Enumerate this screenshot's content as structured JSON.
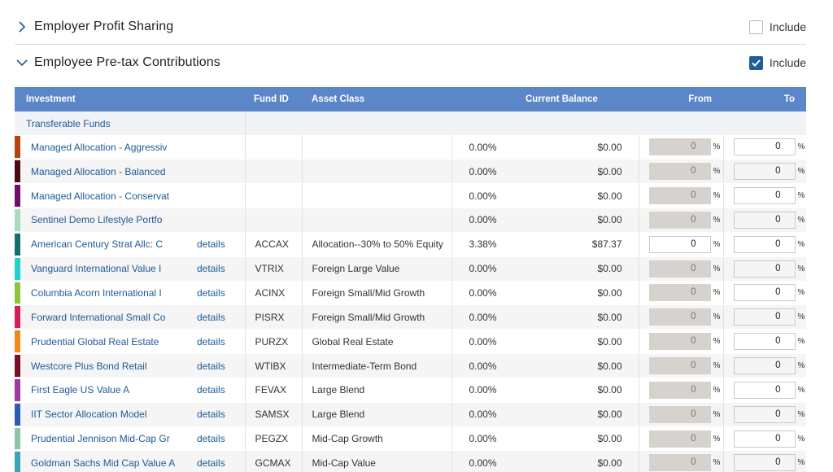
{
  "sections": [
    {
      "title": "Employer Profit Sharing",
      "include_label": "Include",
      "included": false,
      "expanded": false
    },
    {
      "title": "Employee Pre-tax Contributions",
      "include_label": "Include",
      "included": true,
      "expanded": true
    }
  ],
  "table": {
    "headers": {
      "investment": "Investment",
      "fund_id": "Fund ID",
      "asset_class": "Asset Class",
      "current_balance": "Current Balance",
      "from": "From",
      "to": "To"
    },
    "group_label": "Transferable Funds",
    "percent_symbol": "%",
    "rows": [
      {
        "name": "Managed Allocation - Aggressiv",
        "color": "#b8420e",
        "details": "",
        "fund_id": "",
        "asset_class": "",
        "pct": "0.00%",
        "balance": "$0.00",
        "from": "0",
        "to": "0",
        "from_enabled": false
      },
      {
        "name": "Managed Allocation - Balanced",
        "color": "#4a0d12",
        "details": "",
        "fund_id": "",
        "asset_class": "",
        "pct": "0.00%",
        "balance": "$0.00",
        "from": "0",
        "to": "0",
        "from_enabled": false
      },
      {
        "name": "Managed Allocation - Conservat",
        "color": "#6e0f6e",
        "details": "",
        "fund_id": "",
        "asset_class": "",
        "pct": "0.00%",
        "balance": "$0.00",
        "from": "0",
        "to": "0",
        "from_enabled": false
      },
      {
        "name": "Sentinel Demo Lifestyle Portfo",
        "color": "#a8dcc0",
        "details": "",
        "fund_id": "",
        "asset_class": "",
        "pct": "0.00%",
        "balance": "$0.00",
        "from": "0",
        "to": "0",
        "from_enabled": false
      },
      {
        "name": "American Century Strat Allc: C",
        "color": "#156e6e",
        "details": "details",
        "fund_id": "ACCAX",
        "asset_class": "Allocation--30% to 50% Equity",
        "pct": "3.38%",
        "balance": "$87.37",
        "from": "0",
        "to": "0",
        "from_enabled": true
      },
      {
        "name": "Vanguard International Value I",
        "color": "#22d0cc",
        "details": "details",
        "fund_id": "VTRIX",
        "asset_class": "Foreign Large Value",
        "pct": "0.00%",
        "balance": "$0.00",
        "from": "0",
        "to": "0",
        "from_enabled": false
      },
      {
        "name": "Columbia Acorn International I",
        "color": "#8cc43a",
        "details": "details",
        "fund_id": "ACINX",
        "asset_class": "Foreign Small/Mid Growth",
        "pct": "0.00%",
        "balance": "$0.00",
        "from": "0",
        "to": "0",
        "from_enabled": false
      },
      {
        "name": "Forward International Small Co",
        "color": "#d41e5a",
        "details": "details",
        "fund_id": "PISRX",
        "asset_class": "Foreign Small/Mid Growth",
        "pct": "0.00%",
        "balance": "$0.00",
        "from": "0",
        "to": "0",
        "from_enabled": false
      },
      {
        "name": "Prudential Global Real Estate",
        "color": "#f08a12",
        "details": "details",
        "fund_id": "PURZX",
        "asset_class": "Global Real Estate",
        "pct": "0.00%",
        "balance": "$0.00",
        "from": "0",
        "to": "0",
        "from_enabled": false
      },
      {
        "name": "Westcore Plus Bond Retail",
        "color": "#7a0e24",
        "details": "details",
        "fund_id": "WTIBX",
        "asset_class": "Intermediate-Term Bond",
        "pct": "0.00%",
        "balance": "$0.00",
        "from": "0",
        "to": "0",
        "from_enabled": false
      },
      {
        "name": "First Eagle US Value A",
        "color": "#9c3aa0",
        "details": "details",
        "fund_id": "FEVAX",
        "asset_class": "Large Blend",
        "pct": "0.00%",
        "balance": "$0.00",
        "from": "0",
        "to": "0",
        "from_enabled": false
      },
      {
        "name": "IIT Sector Allocation Model",
        "color": "#2e5cb0",
        "details": "details",
        "fund_id": "SAMSX",
        "asset_class": "Large Blend",
        "pct": "0.00%",
        "balance": "$0.00",
        "from": "0",
        "to": "0",
        "from_enabled": false
      },
      {
        "name": "Prudential Jennison Mid-Cap Gr",
        "color": "#8cc4a8",
        "details": "details",
        "fund_id": "PEGZX",
        "asset_class": "Mid-Cap Growth",
        "pct": "0.00%",
        "balance": "$0.00",
        "from": "0",
        "to": "0",
        "from_enabled": false
      },
      {
        "name": "Goldman Sachs Mid Cap Value A",
        "color": "#3aa6b8",
        "details": "details",
        "fund_id": "GCMAX",
        "asset_class": "Mid-Cap Value",
        "pct": "0.00%",
        "balance": "$0.00",
        "from": "0",
        "to": "0",
        "from_enabled": false
      }
    ]
  }
}
